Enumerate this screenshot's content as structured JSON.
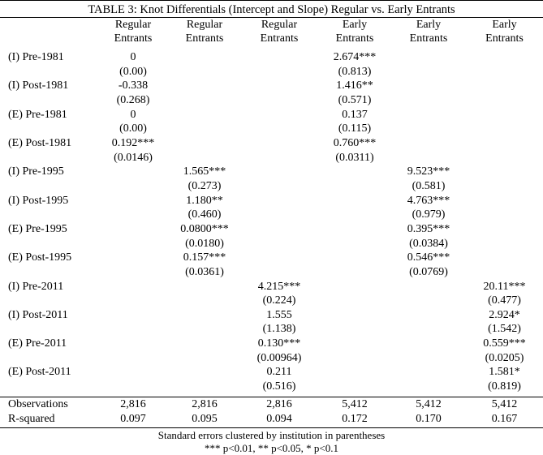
{
  "title": "TABLE 3: Knot Differentials (Intercept and Slope) Regular vs. Early Entrants",
  "columns": [
    {
      "line1": "Regular",
      "line2": "Entrants"
    },
    {
      "line1": "Regular",
      "line2": "Entrants"
    },
    {
      "line1": "Regular",
      "line2": "Entrants"
    },
    {
      "line1": "Early",
      "line2": "Entrants"
    },
    {
      "line1": "Early",
      "line2": "Entrants"
    },
    {
      "line1": "Early",
      "line2": "Entrants"
    }
  ],
  "rows": [
    {
      "label": "(I) Pre-1981",
      "coef": [
        "0",
        "",
        "",
        "2.674***",
        "",
        ""
      ],
      "se": [
        "(0.00)",
        "",
        "",
        "(0.813)",
        "",
        ""
      ]
    },
    {
      "label": "(I) Post-1981",
      "coef": [
        "-0.338",
        "",
        "",
        "1.416**",
        "",
        ""
      ],
      "se": [
        "(0.268)",
        "",
        "",
        "(0.571)",
        "",
        ""
      ]
    },
    {
      "label": "(E) Pre-1981",
      "coef": [
        "0",
        "",
        "",
        "0.137",
        "",
        ""
      ],
      "se": [
        "(0.00)",
        "",
        "",
        "(0.115)",
        "",
        ""
      ]
    },
    {
      "label": "(E) Post-1981",
      "coef": [
        "0.192***",
        "",
        "",
        "0.760***",
        "",
        ""
      ],
      "se": [
        "(0.0146)",
        "",
        "",
        "(0.0311)",
        "",
        ""
      ]
    },
    {
      "label": "(I) Pre-1995",
      "coef": [
        "",
        "1.565***",
        "",
        "",
        "9.523***",
        ""
      ],
      "se": [
        "",
        "(0.273)",
        "",
        "",
        "(0.581)",
        ""
      ]
    },
    {
      "label": "(I) Post-1995",
      "coef": [
        "",
        "1.180**",
        "",
        "",
        "4.763***",
        ""
      ],
      "se": [
        "",
        "(0.460)",
        "",
        "",
        "(0.979)",
        ""
      ]
    },
    {
      "label": "(E) Pre-1995",
      "coef": [
        "",
        "0.0800***",
        "",
        "",
        "0.395***",
        ""
      ],
      "se": [
        "",
        "(0.0180)",
        "",
        "",
        "(0.0384)",
        ""
      ]
    },
    {
      "label": "(E) Post-1995",
      "coef": [
        "",
        "0.157***",
        "",
        "",
        "0.546***",
        ""
      ],
      "se": [
        "",
        "(0.0361)",
        "",
        "",
        "(0.0769)",
        ""
      ]
    },
    {
      "label": "(I) Pre-2011",
      "coef": [
        "",
        "",
        "4.215***",
        "",
        "",
        "20.11***"
      ],
      "se": [
        "",
        "",
        "(0.224)",
        "",
        "",
        "(0.477)"
      ]
    },
    {
      "label": "(I) Post-2011",
      "coef": [
        "",
        "",
        "1.555",
        "",
        "",
        "2.924*"
      ],
      "se": [
        "",
        "",
        "(1.138)",
        "",
        "",
        "(1.542)"
      ]
    },
    {
      "label": "(E) Pre-2011",
      "coef": [
        "",
        "",
        "0.130***",
        "",
        "",
        "0.559***"
      ],
      "se": [
        "",
        "",
        "(0.00964)",
        "",
        "",
        "(0.0205)"
      ]
    },
    {
      "label": "(E) Post-2011",
      "coef": [
        "",
        "",
        "0.211",
        "",
        "",
        "1.581*"
      ],
      "se": [
        "",
        "",
        "(0.516)",
        "",
        "",
        "(0.819)"
      ]
    }
  ],
  "stats": [
    {
      "label": "Observations",
      "values": [
        "2,816",
        "2,816",
        "2,816",
        "5,412",
        "5,412",
        "5,412"
      ]
    },
    {
      "label": "R-squared",
      "values": [
        "0.097",
        "0.095",
        "0.094",
        "0.172",
        "0.170",
        "0.167"
      ]
    }
  ],
  "notes": [
    "Standard errors clustered by institution in parentheses",
    "*** p<0.01, ** p<0.05, * p<0.1"
  ]
}
